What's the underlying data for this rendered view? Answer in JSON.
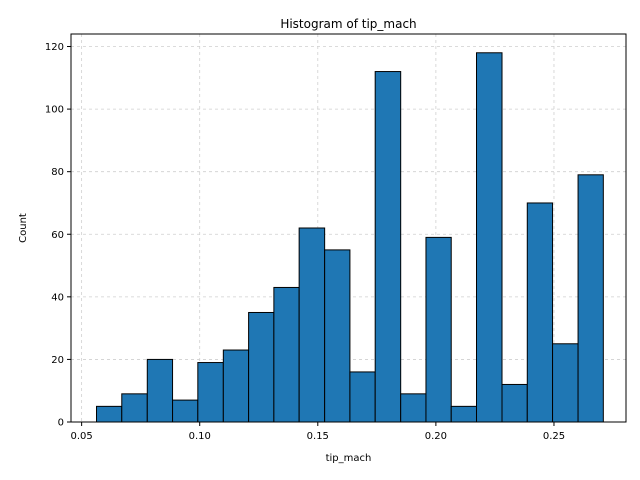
{
  "chart_data": {
    "type": "bar",
    "title": "Histogram of tip_mach",
    "xlabel": "tip_mach",
    "ylabel": "Count",
    "xlim": [
      0.0455,
      0.2805
    ],
    "ylim": [
      0,
      124
    ],
    "grid": true,
    "bar_color": "#1f77b4",
    "edge_color": "#000000",
    "x_ticks": [
      0.05,
      0.1,
      0.15,
      0.2,
      0.25
    ],
    "x_tick_labels": [
      "0.05",
      "0.10",
      "0.15",
      "0.20",
      "0.25"
    ],
    "y_ticks": [
      0,
      20,
      40,
      60,
      80,
      100,
      120
    ],
    "y_tick_labels": [
      "0",
      "20",
      "40",
      "60",
      "80",
      "100",
      "120"
    ],
    "bins": [
      {
        "x0": 0.0563,
        "x1": 0.067,
        "count": 5
      },
      {
        "x0": 0.067,
        "x1": 0.0778,
        "count": 9
      },
      {
        "x0": 0.0778,
        "x1": 0.0885,
        "count": 20
      },
      {
        "x0": 0.0885,
        "x1": 0.0992,
        "count": 7
      },
      {
        "x0": 0.0992,
        "x1": 0.11,
        "count": 19
      },
      {
        "x0": 0.11,
        "x1": 0.1207,
        "count": 23
      },
      {
        "x0": 0.1207,
        "x1": 0.1314,
        "count": 35
      },
      {
        "x0": 0.1314,
        "x1": 0.1421,
        "count": 43
      },
      {
        "x0": 0.1421,
        "x1": 0.1529,
        "count": 62
      },
      {
        "x0": 0.1529,
        "x1": 0.1636,
        "count": 55
      },
      {
        "x0": 0.1636,
        "x1": 0.1743,
        "count": 16
      },
      {
        "x0": 0.1743,
        "x1": 0.1851,
        "count": 112
      },
      {
        "x0": 0.1851,
        "x1": 0.1958,
        "count": 9
      },
      {
        "x0": 0.1958,
        "x1": 0.2065,
        "count": 59
      },
      {
        "x0": 0.2065,
        "x1": 0.2172,
        "count": 5
      },
      {
        "x0": 0.2172,
        "x1": 0.228,
        "count": 118
      },
      {
        "x0": 0.228,
        "x1": 0.2387,
        "count": 12
      },
      {
        "x0": 0.2387,
        "x1": 0.2494,
        "count": 70
      },
      {
        "x0": 0.2494,
        "x1": 0.2602,
        "count": 25
      },
      {
        "x0": 0.2602,
        "x1": 0.2709,
        "count": 79
      }
    ]
  }
}
